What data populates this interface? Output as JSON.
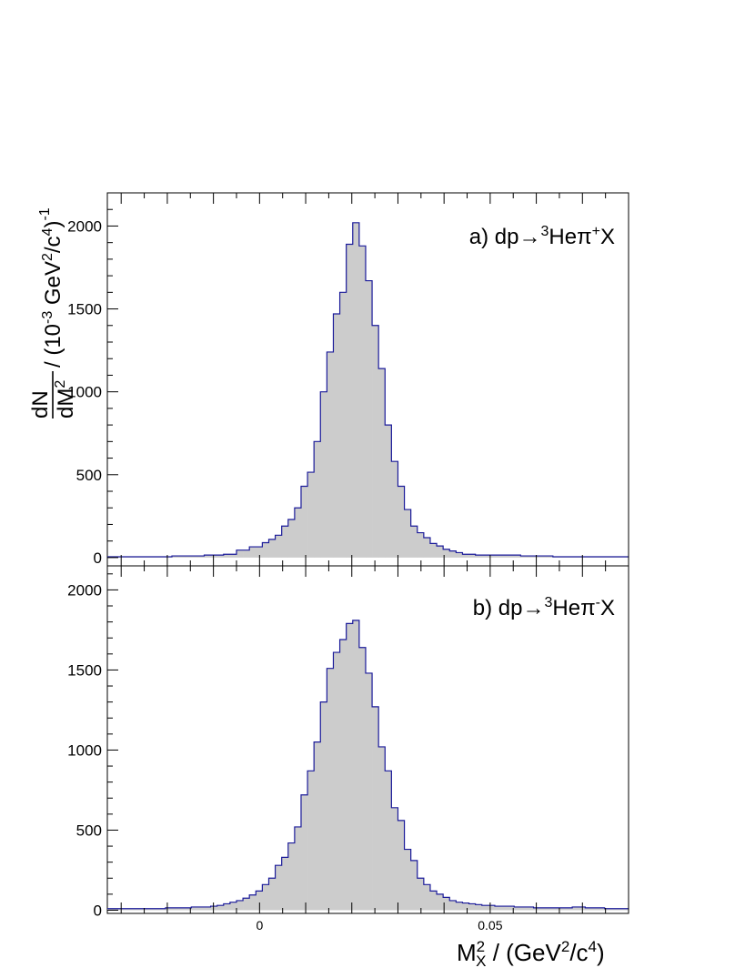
{
  "y_label": {
    "num": "dN",
    "den_base": "dM",
    "den_sup": "2",
    "t1": " / (10",
    "t2": "-3",
    "t3": " GeV",
    "t4": "2",
    "t5": "/c",
    "t6": "4",
    "t7": ")",
    "t8": "-1"
  },
  "x_label": {
    "base": "M",
    "sup": "2",
    "sub": "X",
    "t1": "  / (GeV",
    "t2": "2",
    "t3": "/c",
    "t4": "4",
    "t5": ")"
  },
  "colors": {
    "fill": "#cccccc",
    "line": "#1a1a99",
    "axis": "#000000"
  },
  "chart_data": [
    {
      "type": "area",
      "panel_label": {
        "t1": "a) dp",
        "arrow": "→",
        "sup1": "3",
        "t2": "He",
        "pi": "π",
        "sup2": "+",
        "t3": "X"
      },
      "xlim": [
        -0.033,
        0.08
      ],
      "ylim": [
        -50,
        2200
      ],
      "bin_width": 0.0014,
      "x_ticks": [],
      "y_ticks": [
        "0",
        "500",
        "1000",
        "1500",
        "2000"
      ],
      "y_tick_values": [
        0,
        500,
        1000,
        1500,
        2000
      ],
      "x": [
        -0.0323,
        -0.0309,
        -0.0295,
        -0.0281,
        -0.0267,
        -0.0253,
        -0.0239,
        -0.0225,
        -0.0211,
        -0.0197,
        -0.0183,
        -0.0169,
        -0.0155,
        -0.0141,
        -0.0127,
        -0.0113,
        -0.0099,
        -0.0085,
        -0.0071,
        -0.0057,
        -0.0043,
        -0.0029,
        -0.0015,
        -0.0001,
        0.0013,
        0.0027,
        0.0041,
        0.0055,
        0.0069,
        0.0083,
        0.0097,
        0.0111,
        0.0125,
        0.0139,
        0.0153,
        0.0167,
        0.0181,
        0.0195,
        0.0209,
        0.0223,
        0.0237,
        0.0251,
        0.0265,
        0.0279,
        0.0293,
        0.0307,
        0.0321,
        0.0335,
        0.0349,
        0.0363,
        0.0377,
        0.0391,
        0.0405,
        0.0419,
        0.0433,
        0.0447,
        0.0461,
        0.0475,
        0.0489,
        0.0503,
        0.0517,
        0.0531,
        0.0545,
        0.0559,
        0.0573,
        0.0587,
        0.0601,
        0.0615,
        0.0629,
        0.0643,
        0.0657,
        0.0671,
        0.0685,
        0.0699,
        0.0713,
        0.0727,
        0.0741,
        0.0755,
        0.0769,
        0.0783,
        0.0797
      ],
      "values": [
        5,
        5,
        5,
        5,
        5,
        5,
        5,
        5,
        5,
        5,
        10,
        10,
        10,
        10,
        10,
        15,
        15,
        15,
        20,
        20,
        45,
        45,
        65,
        65,
        90,
        110,
        135,
        190,
        230,
        300,
        430,
        515,
        700,
        1000,
        1240,
        1470,
        1600,
        1890,
        2020,
        1880,
        1670,
        1400,
        1140,
        800,
        580,
        430,
        290,
        190,
        150,
        120,
        85,
        70,
        50,
        40,
        30,
        20,
        20,
        15,
        15,
        15,
        15,
        15,
        15,
        15,
        10,
        10,
        10,
        10,
        10,
        5,
        5,
        5,
        5,
        5,
        5,
        5,
        5,
        5,
        5,
        5,
        5
      ]
    },
    {
      "type": "area",
      "panel_label": {
        "t1": "b) dp",
        "arrow": "→",
        "sup1": "3",
        "t2": "He",
        "pi": "π",
        "sup2": "-",
        "t3": "X"
      },
      "xlim": [
        -0.033,
        0.08
      ],
      "ylim": [
        -20,
        2150
      ],
      "bin_width": 0.0014,
      "x_ticks": [
        "0",
        "0.05"
      ],
      "x_tick_values": [
        0,
        0.05
      ],
      "y_ticks": [
        "0",
        "500",
        "1000",
        "1500",
        "2000"
      ],
      "y_tick_values": [
        0,
        500,
        1000,
        1500,
        2000
      ],
      "x": [
        -0.0323,
        -0.0309,
        -0.0295,
        -0.0281,
        -0.0267,
        -0.0253,
        -0.0239,
        -0.0225,
        -0.0211,
        -0.0197,
        -0.0183,
        -0.0169,
        -0.0155,
        -0.0141,
        -0.0127,
        -0.0113,
        -0.0099,
        -0.0085,
        -0.0071,
        -0.0057,
        -0.0043,
        -0.0029,
        -0.0015,
        -0.0001,
        0.0013,
        0.0027,
        0.0041,
        0.0055,
        0.0069,
        0.0083,
        0.0097,
        0.0111,
        0.0125,
        0.0139,
        0.0153,
        0.0167,
        0.0181,
        0.0195,
        0.0209,
        0.0223,
        0.0237,
        0.0251,
        0.0265,
        0.0279,
        0.0293,
        0.0307,
        0.0321,
        0.0335,
        0.0349,
        0.0363,
        0.0377,
        0.0391,
        0.0405,
        0.0419,
        0.0433,
        0.0447,
        0.0461,
        0.0475,
        0.0489,
        0.0503,
        0.0517,
        0.0531,
        0.0545,
        0.0559,
        0.0573,
        0.0587,
        0.0601,
        0.0615,
        0.0629,
        0.0643,
        0.0657,
        0.0671,
        0.0685,
        0.0699,
        0.0713,
        0.0727,
        0.0741,
        0.0755,
        0.0769,
        0.0783,
        0.0797
      ],
      "values": [
        10,
        10,
        10,
        10,
        10,
        10,
        10,
        10,
        10,
        15,
        15,
        15,
        15,
        20,
        20,
        20,
        25,
        30,
        40,
        50,
        60,
        75,
        95,
        120,
        160,
        200,
        280,
        330,
        420,
        520,
        720,
        870,
        1050,
        1300,
        1510,
        1610,
        1690,
        1790,
        1810,
        1640,
        1480,
        1270,
        1020,
        870,
        640,
        560,
        380,
        310,
        200,
        160,
        120,
        100,
        80,
        60,
        50,
        45,
        40,
        35,
        30,
        30,
        25,
        25,
        25,
        20,
        20,
        20,
        15,
        15,
        15,
        15,
        15,
        15,
        20,
        20,
        15,
        15,
        15,
        10,
        10,
        10,
        10
      ]
    }
  ]
}
